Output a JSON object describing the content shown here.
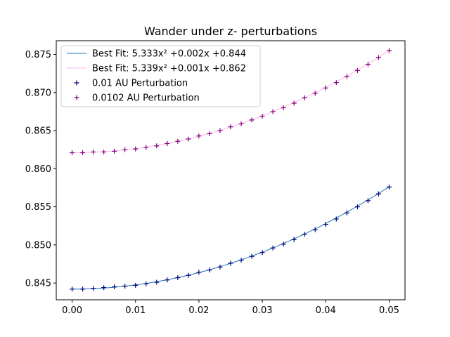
{
  "chart_data": {
    "type": "scatter",
    "title": "Wander under z- perturbations",
    "xlabel": "",
    "ylabel": "",
    "xlim": [
      -0.0025,
      0.0525
    ],
    "ylim": [
      0.8428,
      0.8768
    ],
    "x_ticks": [
      0.0,
      0.01,
      0.02,
      0.03,
      0.04,
      0.05
    ],
    "x_tick_labels": [
      "0.00",
      "0.01",
      "0.02",
      "0.03",
      "0.04",
      "0.05"
    ],
    "y_ticks": [
      0.845,
      0.85,
      0.855,
      0.86,
      0.865,
      0.87,
      0.875
    ],
    "y_tick_labels": [
      "0.845",
      "0.850",
      "0.855",
      "0.860",
      "0.865",
      "0.870",
      "0.875"
    ],
    "grid": false,
    "legend_position": "top-left",
    "x": [
      0.0,
      0.001667,
      0.003333,
      0.005,
      0.006667,
      0.008333,
      0.01,
      0.011667,
      0.013333,
      0.015,
      0.016667,
      0.018333,
      0.02,
      0.021667,
      0.023333,
      0.025,
      0.026667,
      0.028333,
      0.03,
      0.031667,
      0.033333,
      0.035,
      0.036667,
      0.038333,
      0.04,
      0.041667,
      0.043333,
      0.045,
      0.046667,
      0.048333,
      0.05
    ],
    "fits": [
      {
        "name": "Best Fit: 5.333x² +0.002x +0.844",
        "color": "#1f77b4",
        "a": 5.333,
        "b": 0.002,
        "c": 0.8442
      },
      {
        "name": "Best Fit: 5.339x² +0.001x +0.862",
        "color": "#ffb3e6",
        "a": 5.339,
        "b": 0.001,
        "c": 0.8621
      }
    ],
    "series": [
      {
        "name": "0.01 AU Perturbation",
        "color": "#00007f",
        "marker": "+",
        "values": [
          0.8442,
          0.8442,
          0.8443,
          0.8444,
          0.8445,
          0.8446,
          0.8447,
          0.8449,
          0.8451,
          0.8454,
          0.8457,
          0.846,
          0.8464,
          0.8467,
          0.8471,
          0.8476,
          0.848,
          0.8485,
          0.849,
          0.8496,
          0.8501,
          0.8507,
          0.8514,
          0.852,
          0.8527,
          0.8534,
          0.8542,
          0.855,
          0.8558,
          0.8567,
          0.8576
        ]
      },
      {
        "name": "0.0102 AU Perturbation",
        "color": "#7f007f",
        "marker": "+",
        "values": [
          0.8621,
          0.8621,
          0.8622,
          0.8622,
          0.8623,
          0.8625,
          0.8626,
          0.8628,
          0.863,
          0.8633,
          0.8636,
          0.8639,
          0.8643,
          0.8646,
          0.865,
          0.8655,
          0.8659,
          0.8664,
          0.8669,
          0.8675,
          0.868,
          0.8686,
          0.8693,
          0.8699,
          0.8706,
          0.8713,
          0.8721,
          0.8729,
          0.8737,
          0.8746,
          0.8755
        ]
      }
    ]
  }
}
